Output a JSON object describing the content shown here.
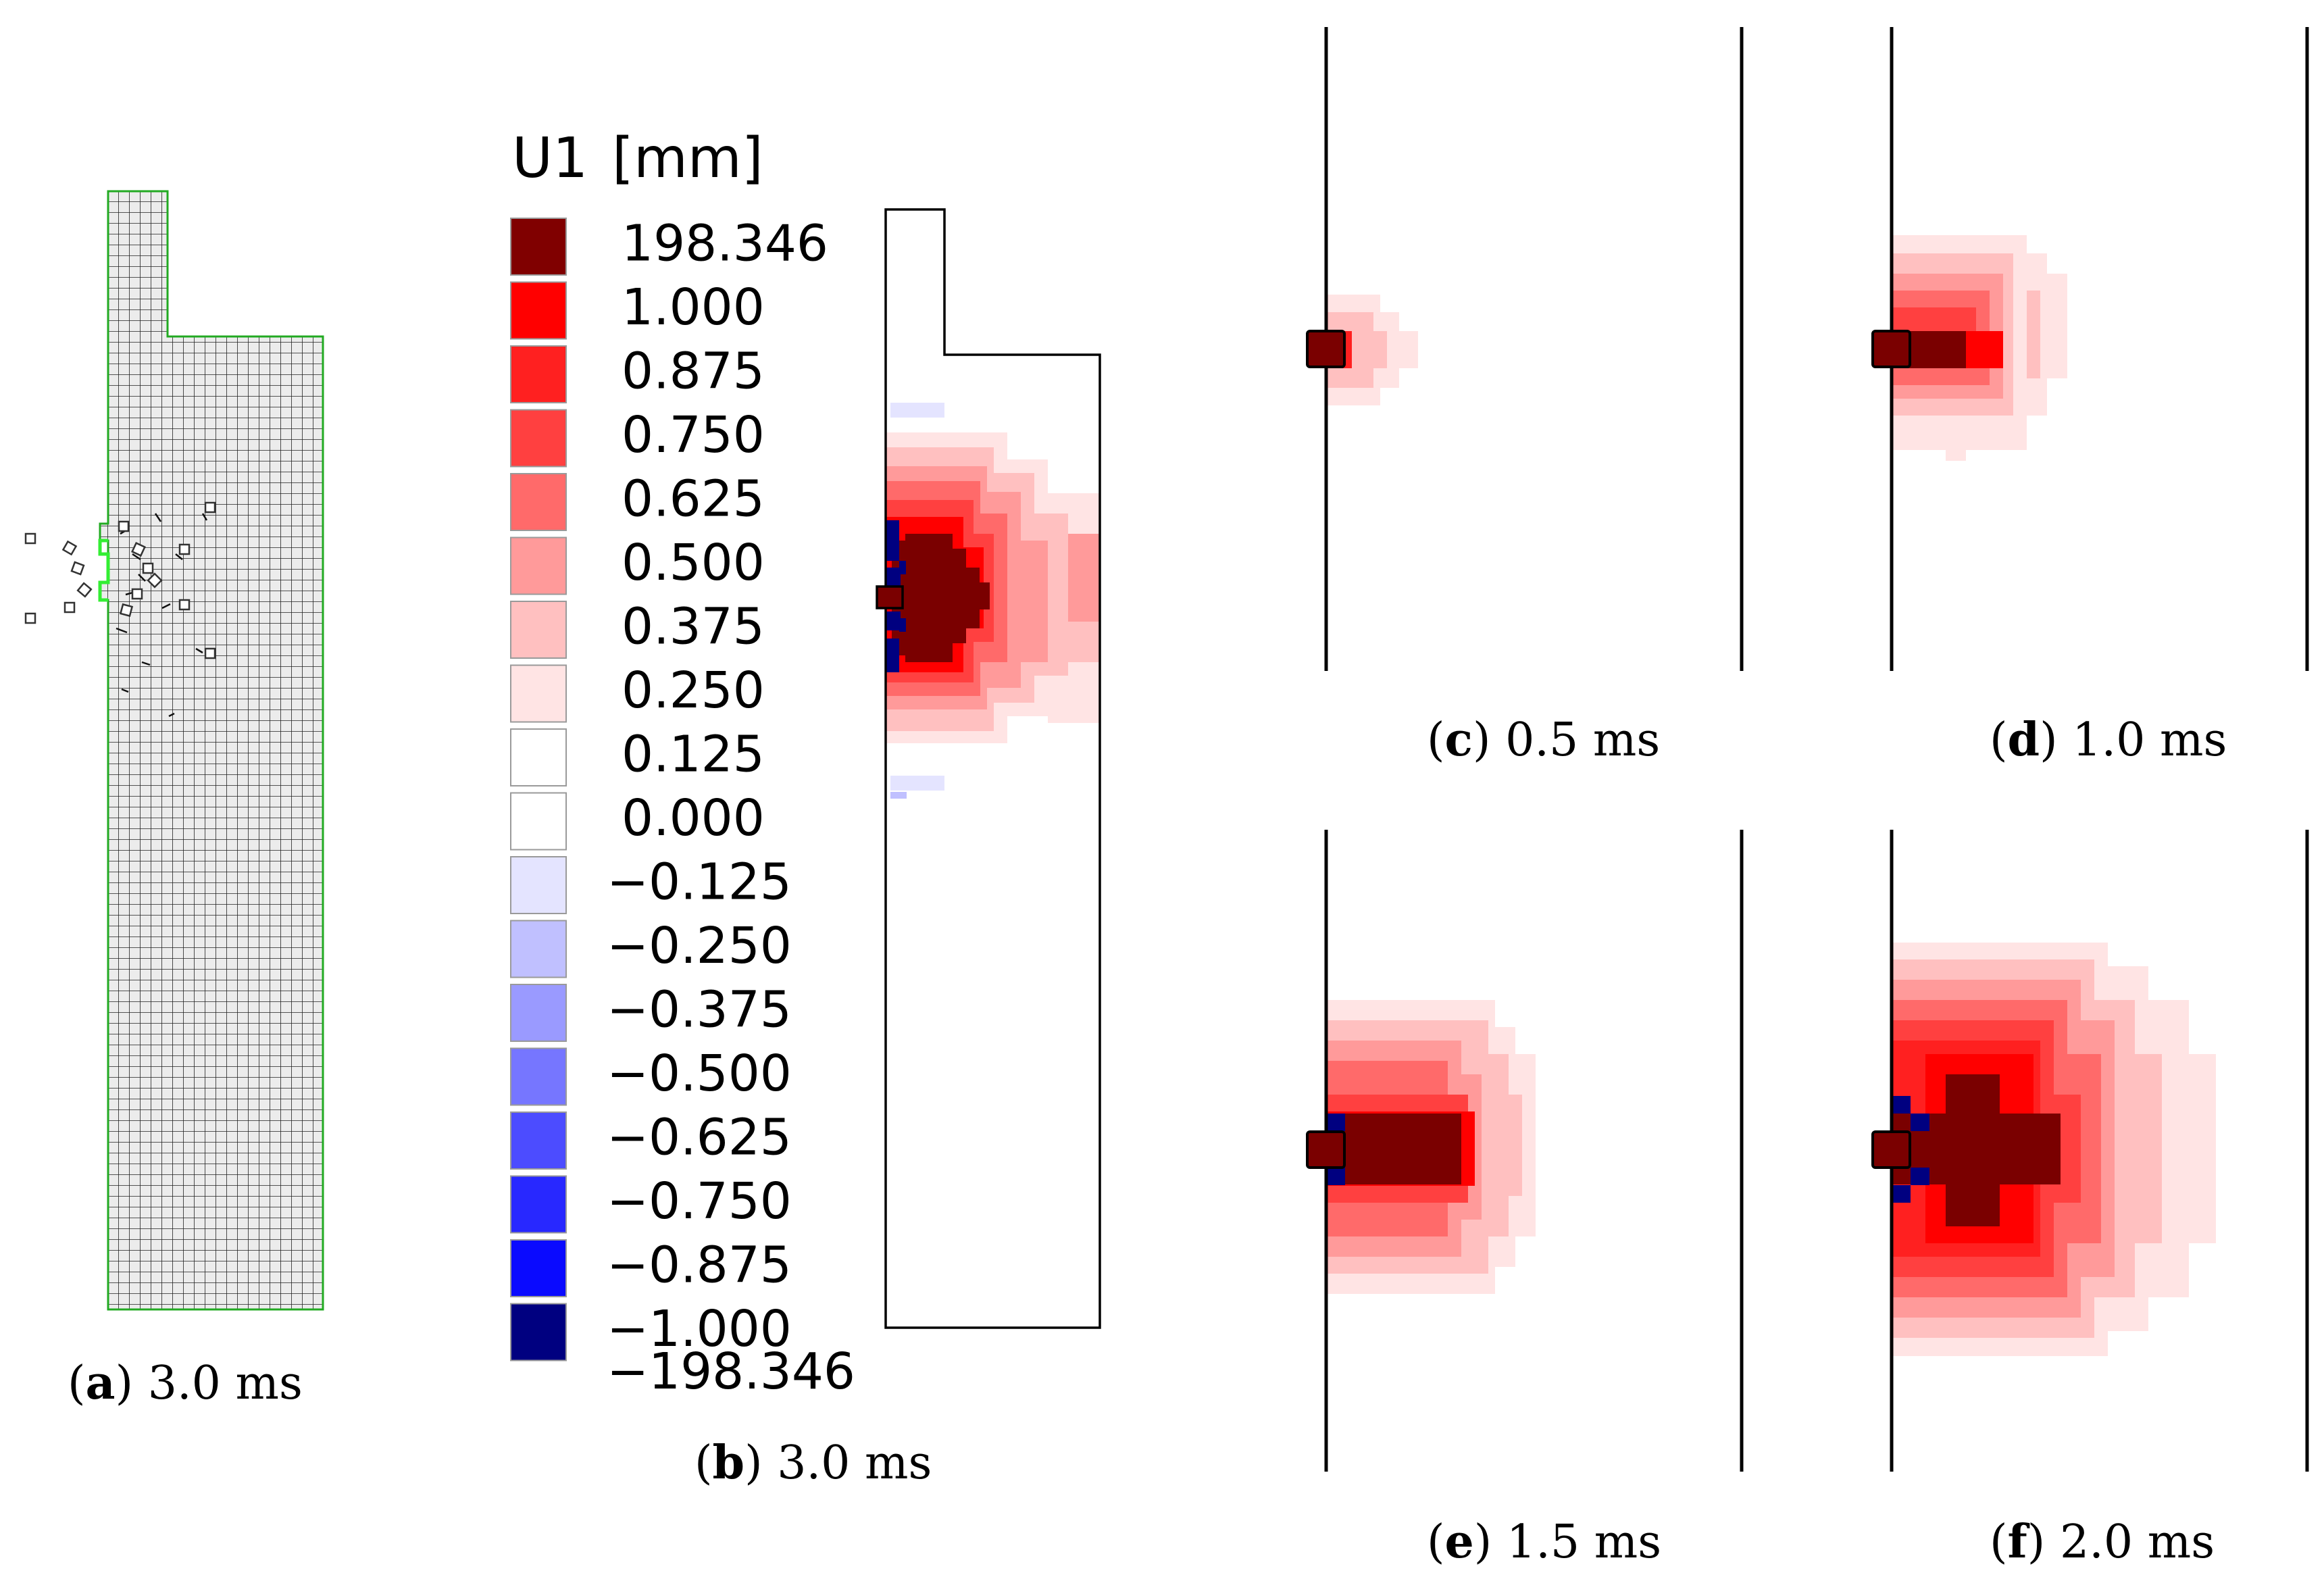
{
  "legend": {
    "variable": "U1",
    "unit": "[mm]",
    "levels": [
      {
        "value": "198.346",
        "color": "#800000"
      },
      {
        "value": "1.000",
        "color": "#ff0000"
      },
      {
        "value": "0.875",
        "color": "#ff2020"
      },
      {
        "value": "0.750",
        "color": "#ff4040"
      },
      {
        "value": "0.625",
        "color": "#ff6a6a"
      },
      {
        "value": "0.500",
        "color": "#ff9a9a"
      },
      {
        "value": "0.375",
        "color": "#ffc0c0"
      },
      {
        "value": "0.250",
        "color": "#ffe4e4"
      },
      {
        "value": "0.125",
        "color": "#ffffff"
      },
      {
        "value": "0.000",
        "color": "#ffffff"
      },
      {
        "value": "−0.125",
        "color": "#e4e4ff"
      },
      {
        "value": "−0.250",
        "color": "#c0c0ff"
      },
      {
        "value": "−0.375",
        "color": "#9a9aff"
      },
      {
        "value": "−0.500",
        "color": "#7676ff"
      },
      {
        "value": "−0.625",
        "color": "#4c4cff"
      },
      {
        "value": "−0.750",
        "color": "#2828ff"
      },
      {
        "value": "−0.875",
        "color": "#0a0aff"
      },
      {
        "value": "−1.000",
        "color": "#000080"
      }
    ],
    "bottom_label": "−198.346"
  },
  "panels": {
    "a": {
      "letter": "a",
      "time": "3.0 ms"
    },
    "b": {
      "letter": "b",
      "time": "3.0 ms"
    },
    "c": {
      "letter": "c",
      "time": "0.5 ms"
    },
    "d": {
      "letter": "d",
      "time": "1.0 ms"
    },
    "e": {
      "letter": "e",
      "time": "1.5 ms"
    },
    "f": {
      "letter": "f",
      "time": "2.0 ms"
    }
  },
  "colors": {
    "mesh_outline": "#22aa22",
    "crater_outline": "#33ee33",
    "mesh_fill": "#ececec",
    "dark_red": "#7a0000",
    "dark_blue": "#000080"
  }
}
